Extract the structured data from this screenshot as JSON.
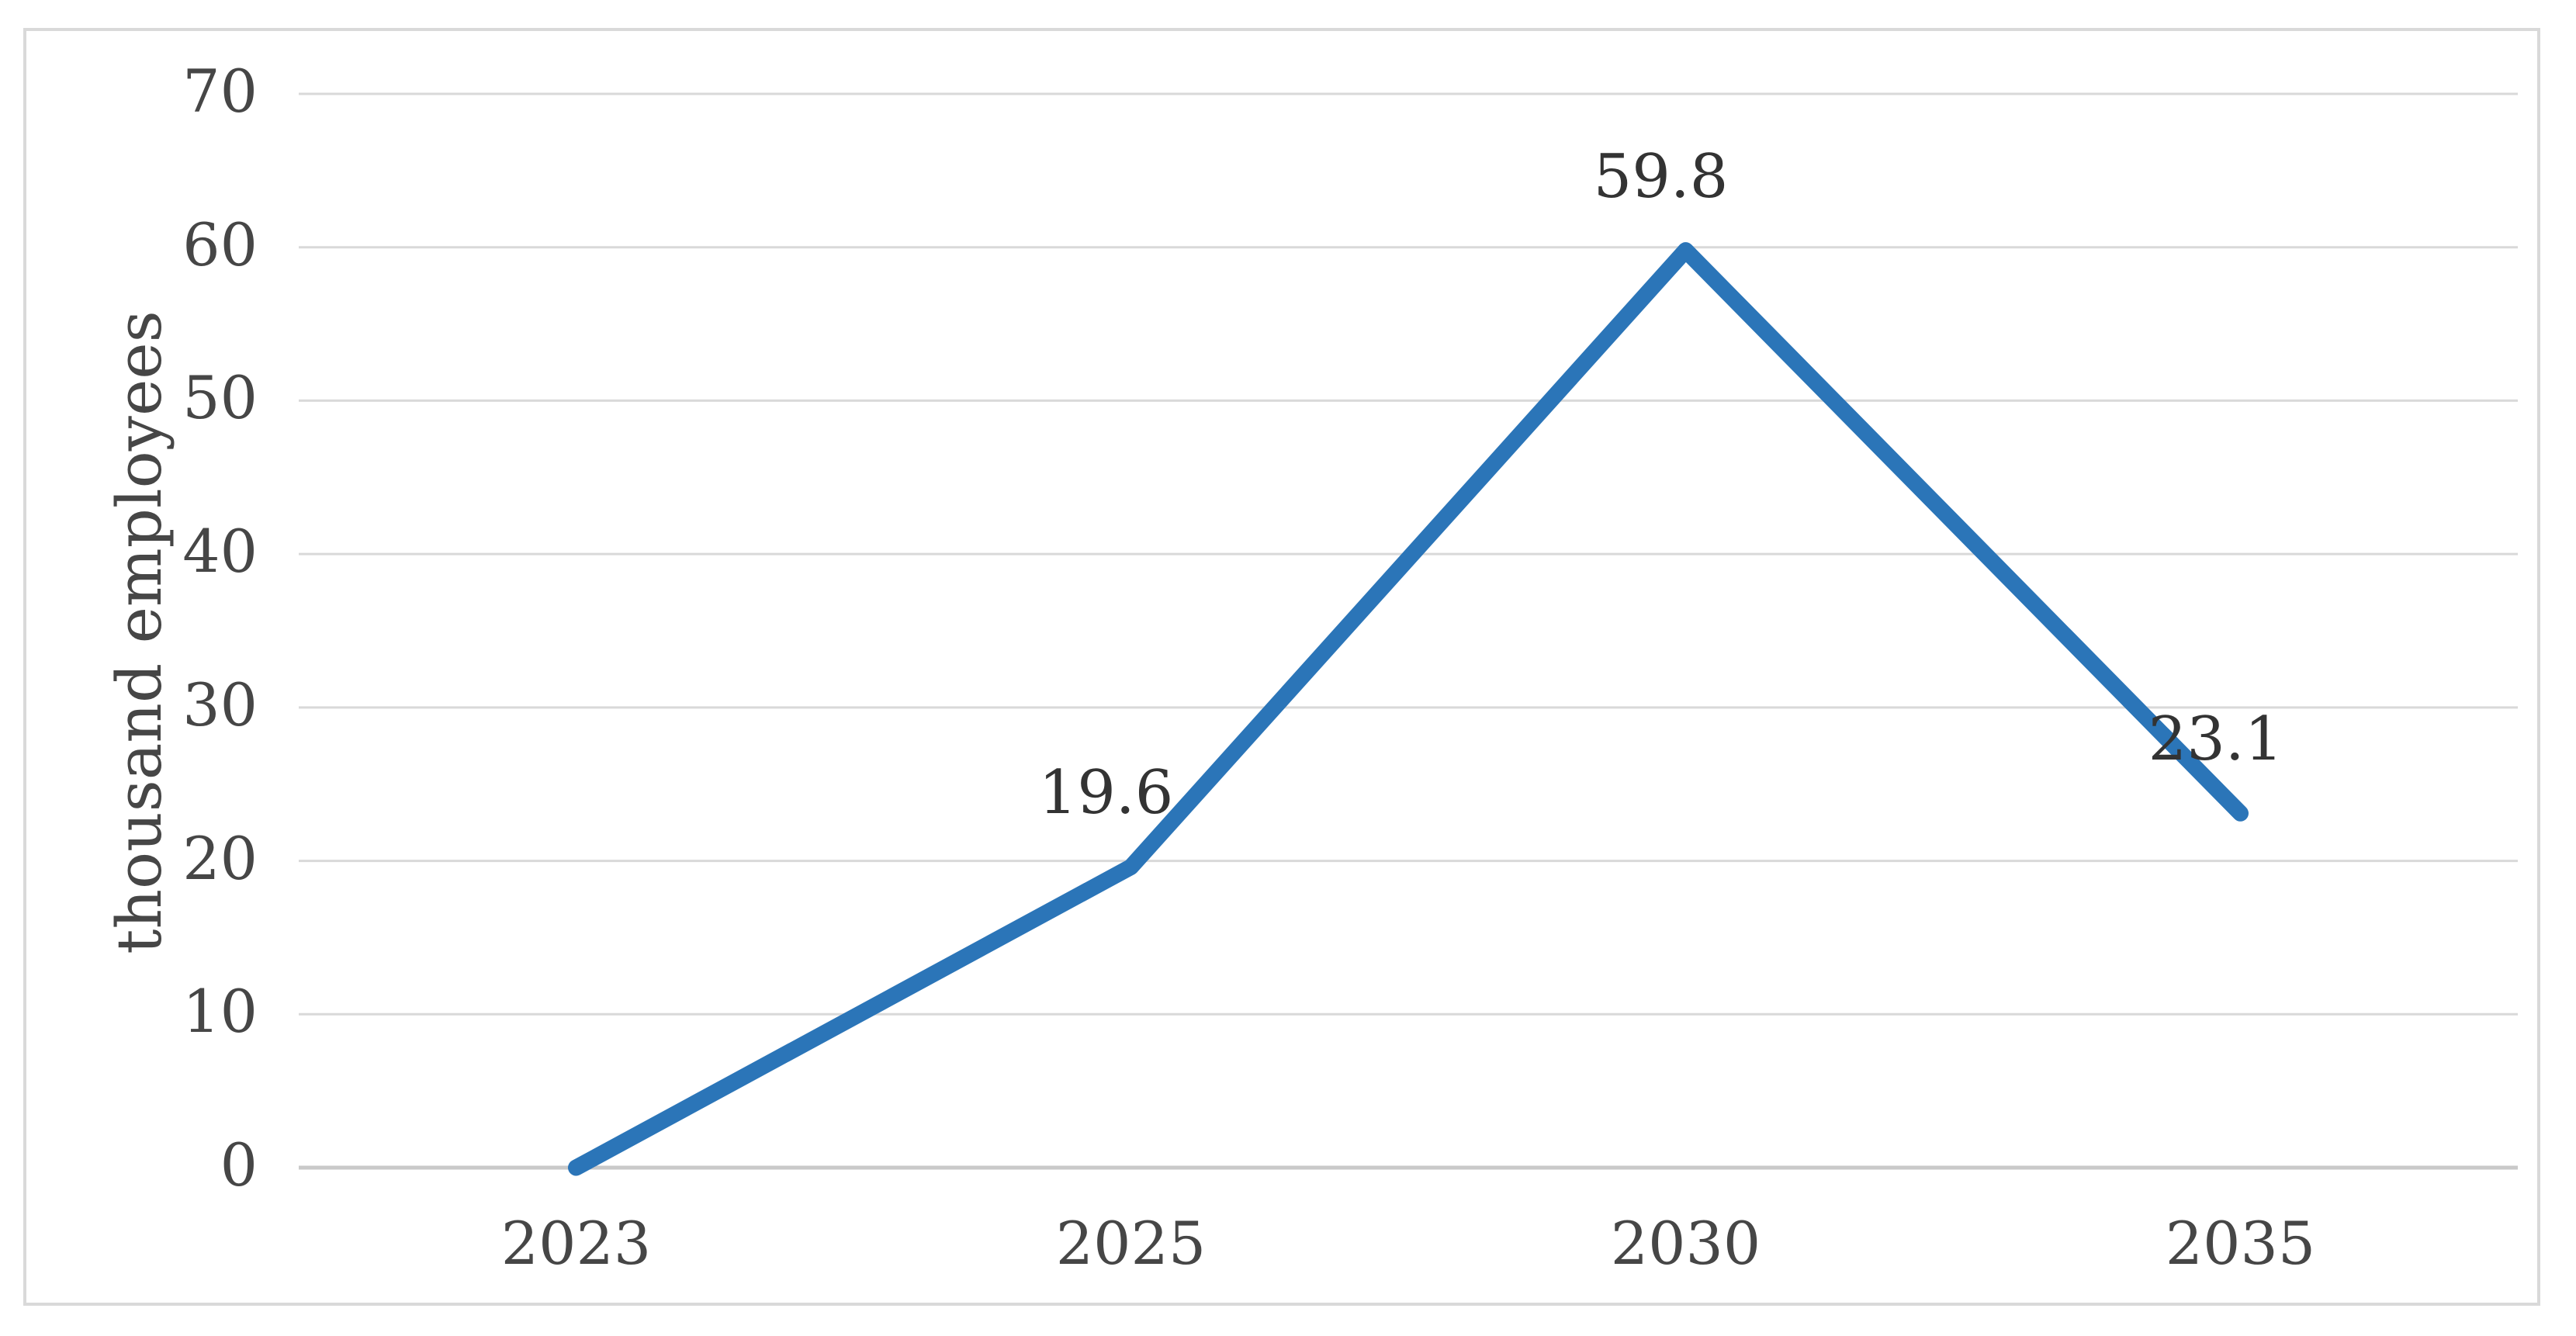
{
  "chart_data": {
    "type": "line",
    "title": "",
    "categories": [
      "2023",
      "2025",
      "2030",
      "2035"
    ],
    "values": [
      0,
      19.6,
      59.8,
      23.1
    ],
    "data_labels": [
      "",
      "19.6",
      "59.8",
      "23.1"
    ],
    "xlabel": "",
    "ylabel": "thousand employees",
    "ylim": [
      0,
      70
    ],
    "ytick_step": 10,
    "yticks": [
      "0",
      "10",
      "20",
      "30",
      "40",
      "50",
      "60",
      "70"
    ],
    "grid": "horizontal gridlines on, no vertical gridlines",
    "legend_position": "none",
    "series_name": "thousand employees",
    "colors": {
      "line": "#2b75b8",
      "gridline": "#d9d9d9",
      "axis_line": "#c9c9c9",
      "tick_text": "#464646",
      "data_label_text": "#333333",
      "figure_border": "#d9d9d9",
      "background": "#ffffff"
    }
  }
}
